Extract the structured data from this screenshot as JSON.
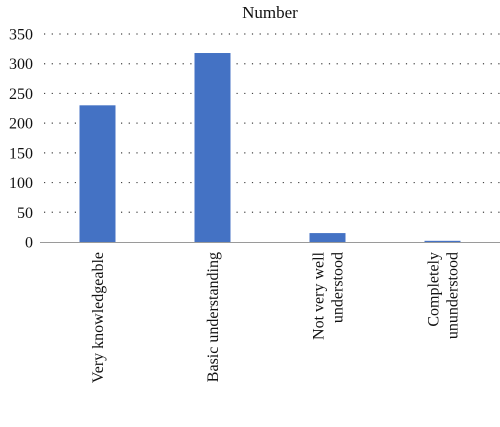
{
  "chart_data": {
    "type": "bar",
    "title": "Number",
    "categories": [
      [
        "Very knowledgeable"
      ],
      [
        "Basic understanding"
      ],
      [
        "Not very well",
        "understood"
      ],
      [
        "Completely",
        "ununderstood"
      ]
    ],
    "values": [
      230,
      318,
      15,
      2
    ],
    "ylim": [
      0,
      350
    ],
    "yticks": [
      0,
      50,
      100,
      150,
      200,
      250,
      300,
      350
    ],
    "grid": true,
    "bar_color": "#4472C4",
    "legend": "none"
  }
}
